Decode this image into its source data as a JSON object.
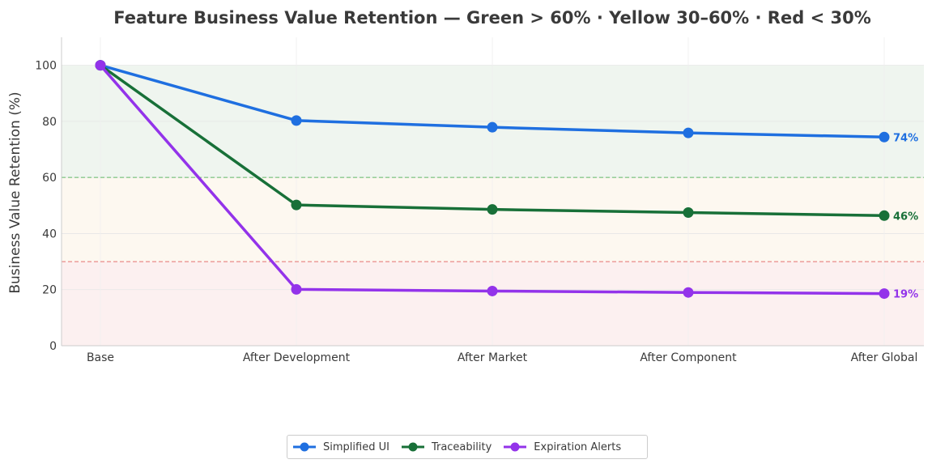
{
  "chart_data": {
    "type": "line",
    "title": "Feature Business Value Retention — Green > 60% · Yellow 30–60% · Red < 30%",
    "xlabel": "",
    "ylabel": "Business Value Retention (%)",
    "categories": [
      "Base",
      "After Development",
      "After Market",
      "After Component",
      "After Global"
    ],
    "ylim": [
      0,
      110
    ],
    "yticks": [
      0,
      20,
      40,
      60,
      80,
      100
    ],
    "grid": true,
    "legend_position": "bottom-center",
    "zones": [
      {
        "name": "green",
        "from": 60,
        "to": 100,
        "color": "#2e7d32"
      },
      {
        "name": "yellow",
        "from": 30,
        "to": 60,
        "color": "#e6a23c"
      },
      {
        "name": "red",
        "from": 0,
        "to": 30,
        "color": "#d64545"
      }
    ],
    "thresholds": [
      {
        "value": 60,
        "color": "#4caf50"
      },
      {
        "value": 30,
        "color": "#e05a5a"
      }
    ],
    "series": [
      {
        "name": "Simplified UI",
        "color": "#1f6fe0",
        "values": [
          100,
          80.3,
          77.9,
          75.9,
          74.4
        ],
        "end_label": "74%"
      },
      {
        "name": "Traceability",
        "color": "#187038",
        "values": [
          100,
          50.2,
          48.6,
          47.5,
          46.4
        ],
        "end_label": "46%"
      },
      {
        "name": "Expiration Alerts",
        "color": "#9333ea",
        "values": [
          100,
          20.1,
          19.5,
          19.0,
          18.6
        ],
        "end_label": "19%"
      }
    ]
  }
}
